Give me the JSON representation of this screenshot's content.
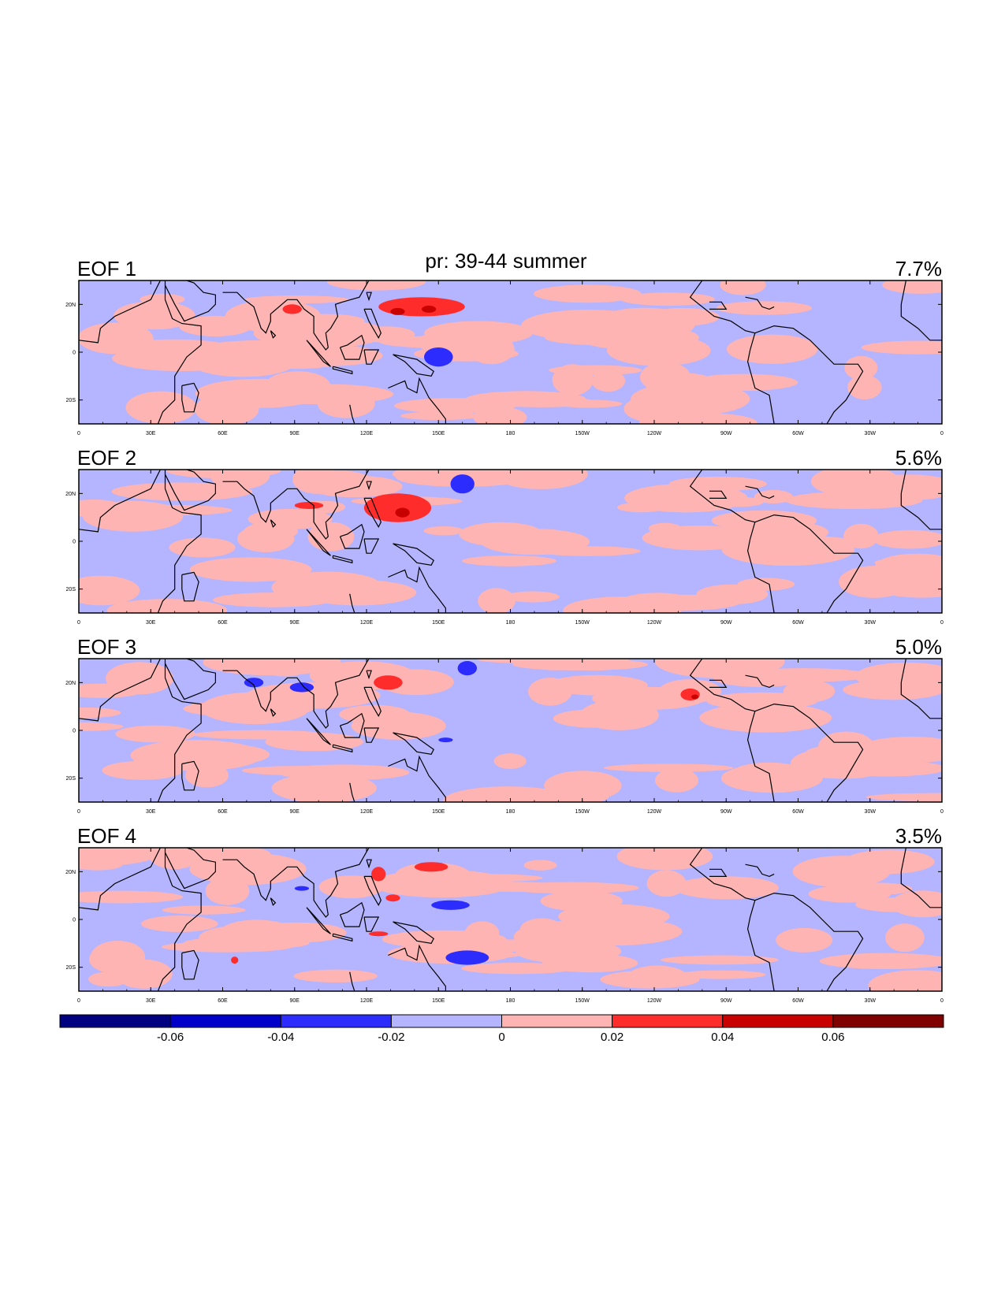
{
  "chart_data": {
    "type": "contour-map",
    "title": "pr: 39-44 summer",
    "panels": [
      {
        "label": "EOF 1",
        "variance": "7.7%",
        "anomalies": [
          {
            "lon": 143,
            "lat": 19,
            "rx": 18,
            "ry": 4,
            "value": 0.03
          },
          {
            "lon": 133,
            "lat": 17,
            "rx": 3,
            "ry": 1.5,
            "value": 0.05
          },
          {
            "lon": 146,
            "lat": 18,
            "rx": 3,
            "ry": 1.5,
            "value": 0.05
          },
          {
            "lon": 89,
            "lat": 18,
            "rx": 4,
            "ry": 2,
            "value": 0.03
          },
          {
            "lon": 150,
            "lat": -2,
            "rx": 6,
            "ry": 4,
            "value": -0.03
          }
        ]
      },
      {
        "label": "EOF 2",
        "variance": "5.6%",
        "anomalies": [
          {
            "lon": 133,
            "lat": 14,
            "rx": 14,
            "ry": 6,
            "value": 0.03
          },
          {
            "lon": 135,
            "lat": 12,
            "rx": 3,
            "ry": 2,
            "value": 0.05
          },
          {
            "lon": 96,
            "lat": 15,
            "rx": 6,
            "ry": 1.5,
            "value": 0.03
          },
          {
            "lon": 160,
            "lat": 24,
            "rx": 5,
            "ry": 4,
            "value": -0.03
          }
        ]
      },
      {
        "label": "EOF 3",
        "variance": "5.0%",
        "anomalies": [
          {
            "lon": 73,
            "lat": 20,
            "rx": 4,
            "ry": 2,
            "value": -0.03
          },
          {
            "lon": 93,
            "lat": 18,
            "rx": 5,
            "ry": 2,
            "value": -0.03
          },
          {
            "lon": 162,
            "lat": 26,
            "rx": 4,
            "ry": 3,
            "value": -0.03
          },
          {
            "lon": 129,
            "lat": 20,
            "rx": 6,
            "ry": 3,
            "value": 0.03
          },
          {
            "lon": -105,
            "lat": 15,
            "rx": 4,
            "ry": 2.5,
            "value": 0.03
          },
          {
            "lon": -103,
            "lat": 14,
            "rx": 1.5,
            "ry": 1,
            "value": 0.05
          },
          {
            "lon": 153,
            "lat": -4,
            "rx": 3,
            "ry": 1,
            "value": -0.03
          }
        ]
      },
      {
        "label": "EOF 4",
        "variance": "3.5%",
        "anomalies": [
          {
            "lon": 125,
            "lat": 19,
            "rx": 3,
            "ry": 3,
            "value": 0.03
          },
          {
            "lon": 147,
            "lat": 22,
            "rx": 7,
            "ry": 2,
            "value": 0.03
          },
          {
            "lon": 131,
            "lat": 9,
            "rx": 3,
            "ry": 1.5,
            "value": 0.03
          },
          {
            "lon": 155,
            "lat": 6,
            "rx": 8,
            "ry": 2,
            "value": -0.03
          },
          {
            "lon": 162,
            "lat": -16,
            "rx": 9,
            "ry": 3,
            "value": -0.03
          },
          {
            "lon": 125,
            "lat": -6,
            "rx": 4,
            "ry": 1,
            "value": 0.03
          },
          {
            "lon": 65,
            "lat": -17,
            "rx": 1.5,
            "ry": 1.5,
            "value": 0.03
          },
          {
            "lon": 93,
            "lat": 13,
            "rx": 3,
            "ry": 1,
            "value": -0.03
          }
        ]
      }
    ],
    "lon_range": [
      0,
      360
    ],
    "lat_range": [
      -30,
      30
    ],
    "x_ticks": [
      {
        "lon": 0,
        "label": "0"
      },
      {
        "lon": 30,
        "label": "30E"
      },
      {
        "lon": 60,
        "label": "60E"
      },
      {
        "lon": 90,
        "label": "90E"
      },
      {
        "lon": 120,
        "label": "120E"
      },
      {
        "lon": 150,
        "label": "150E"
      },
      {
        "lon": 180,
        "label": "180"
      },
      {
        "lon": 210,
        "label": "150W"
      },
      {
        "lon": 240,
        "label": "120W"
      },
      {
        "lon": 270,
        "label": "90W"
      },
      {
        "lon": 300,
        "label": "60W"
      },
      {
        "lon": 330,
        "label": "30W"
      },
      {
        "lon": 360,
        "label": "0"
      }
    ],
    "y_ticks": [
      {
        "lat": 20,
        "label": "20N"
      },
      {
        "lat": 0,
        "label": "0"
      },
      {
        "lat": -20,
        "label": "20S"
      }
    ],
    "colorbar": {
      "levels": [
        -0.06,
        -0.04,
        -0.02,
        0,
        0.02,
        0.04,
        0.06
      ],
      "labels": [
        "-0.06",
        "-0.04",
        "-0.02",
        "0",
        "0.02",
        "0.04",
        "0.06"
      ],
      "colors": [
        "#000080",
        "#0000c8",
        "#2c2cff",
        "#b4b4ff",
        "#ffb4b4",
        "#ff2c2c",
        "#c80000",
        "#800000"
      ]
    }
  }
}
